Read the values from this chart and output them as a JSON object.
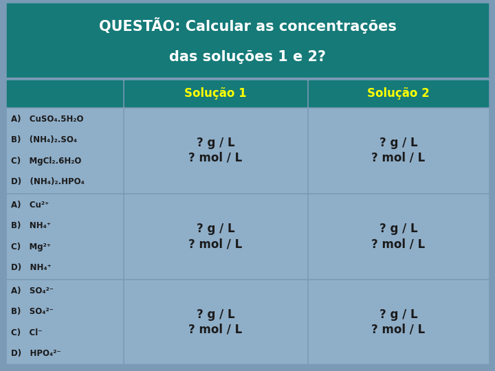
{
  "title_line1": "QUESTÃO: Calcular as concentrações",
  "title_line2": "das soluções 1 e 2?",
  "title_bg": "#157a78",
  "title_text_color": "#FFFFFF",
  "header_bg": "#157a78",
  "header_text_color": "#FFFF00",
  "col2_header": "Solução 1",
  "col3_header": "Solução 2",
  "cell_bg": "#8faec8",
  "row_bg": "#8faec8",
  "divider_bg": "#157a78",
  "bg_color": "#7a9ab5",
  "row1_labels": [
    [
      "A)",
      "CuSO",
      "4",
      ".5H",
      "2",
      "O"
    ],
    [
      "B)",
      "(NH",
      "4",
      ")",
      "2",
      ".SO",
      "4",
      ""
    ],
    [
      "C)",
      "MgCl",
      "2",
      ".6H",
      "2",
      "O"
    ],
    [
      "D)",
      "(NH",
      "4",
      ")",
      "2",
      ".HPO",
      "4",
      ""
    ]
  ],
  "row2_labels": [
    [
      "A)",
      "Cu",
      "2+",
      ""
    ],
    [
      "B)",
      "NH",
      "4",
      "+"
    ],
    [
      "C)",
      "Mg",
      "2+",
      ""
    ],
    [
      "D)",
      "NH",
      "4",
      "+"
    ]
  ],
  "row3_labels": [
    [
      "A)",
      "SO",
      "4",
      "2-"
    ],
    [
      "B)",
      "SO",
      "4",
      "2-"
    ],
    [
      "C)",
      "Cl",
      "-",
      ""
    ],
    [
      "D)",
      "HPO",
      "4",
      "2-"
    ]
  ],
  "cell_text_line1": "? g / L",
  "cell_text_line2": "? mol / L",
  "text_color": "#1a1a1a"
}
